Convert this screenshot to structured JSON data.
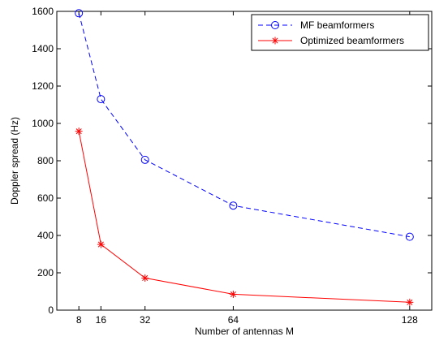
{
  "chart_data": {
    "type": "line",
    "title": "",
    "xlabel": "Number of antennas M",
    "ylabel": "Doppler spread (Hz)",
    "xlim": [
      0,
      136
    ],
    "ylim": [
      0,
      1600
    ],
    "x_ticks": [
      8,
      16,
      32,
      64,
      128
    ],
    "y_ticks": [
      0,
      200,
      400,
      600,
      800,
      1000,
      1200,
      1400,
      1600
    ],
    "grid": false,
    "legend_position": "top-right",
    "series": [
      {
        "name": "MF beamformers",
        "x": [
          8,
          16,
          32,
          64,
          128
        ],
        "y": [
          1590,
          1130,
          805,
          560,
          393
        ],
        "color": "#0000ff",
        "line_style": "dashed",
        "marker": "circle"
      },
      {
        "name": "Optimized beamformers",
        "x": [
          8,
          16,
          32,
          64,
          128
        ],
        "y": [
          958,
          352,
          172,
          85,
          42
        ],
        "color": "#ff0000",
        "line_style": "solid",
        "marker": "asterisk"
      }
    ]
  }
}
